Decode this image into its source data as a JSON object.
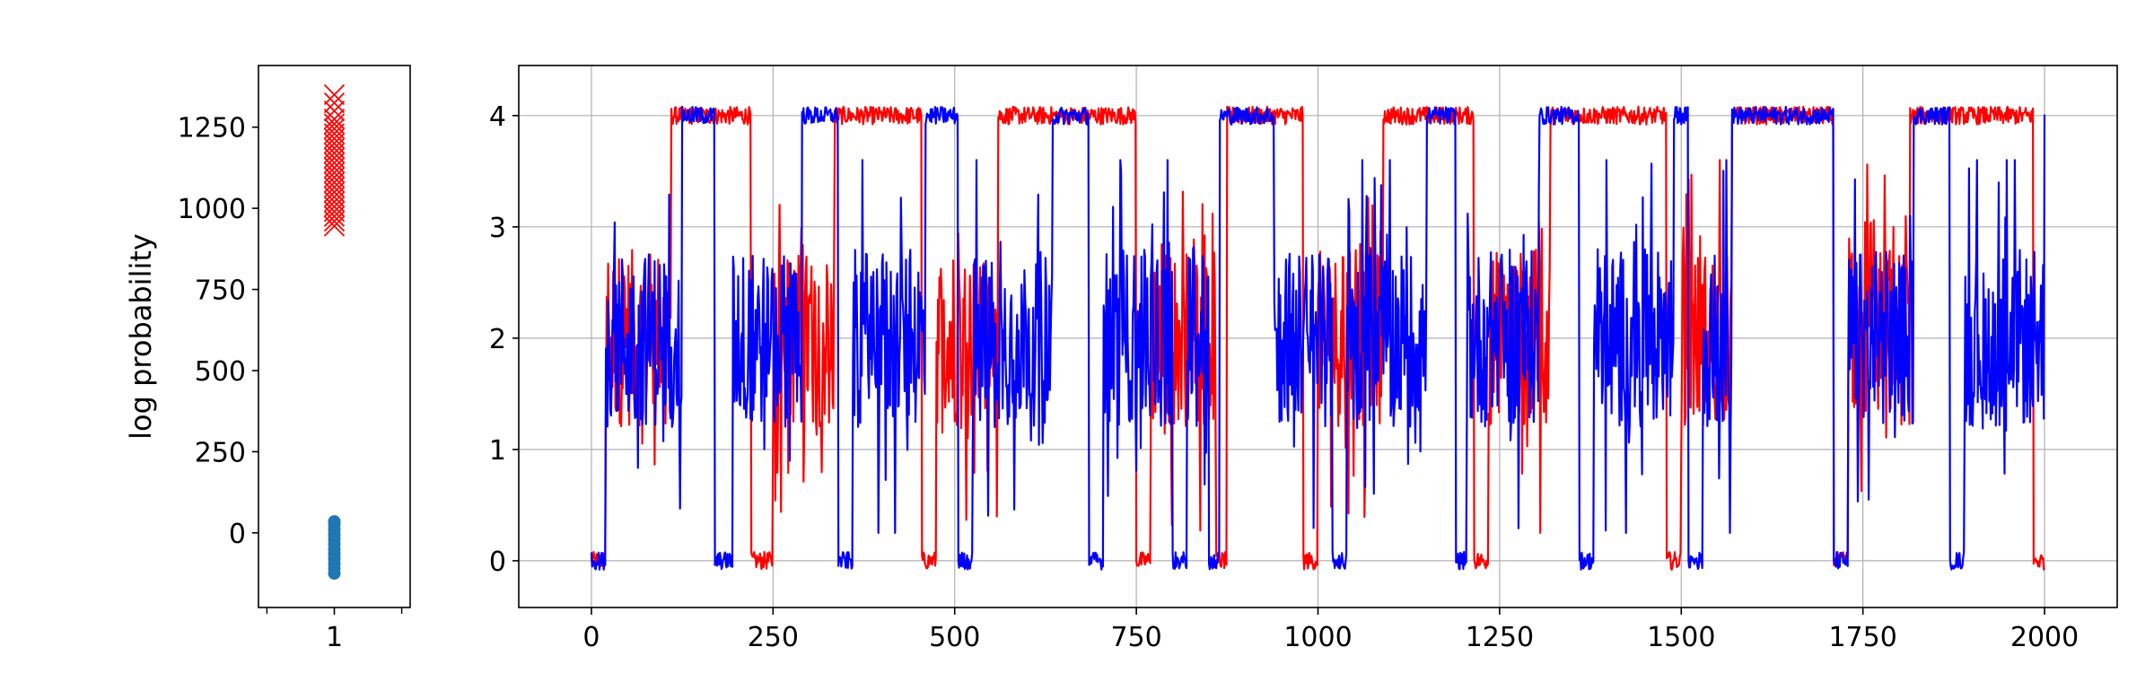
{
  "chart_data": [
    {
      "type": "scatter",
      "ylabel": "log probability",
      "xlim": [
        0.55,
        1.45
      ],
      "ylim": [
        -230,
        1440
      ],
      "x_ticks": [
        "1"
      ],
      "y_ticks": [
        "0",
        "250",
        "500",
        "750",
        "1000",
        "1250"
      ],
      "grid": false,
      "series": [
        {
          "marker": "x",
          "color": "#ff0000",
          "x": 1,
          "y": [
            945,
            960,
            975,
            990,
            1005,
            1020,
            1035,
            1050,
            1065,
            1080,
            1095,
            1110,
            1125,
            1140,
            1155,
            1170,
            1185,
            1200,
            1215,
            1230,
            1245,
            1260,
            1275,
            1300,
            1325,
            1350
          ]
        },
        {
          "marker": "o",
          "color": "#1f77b4",
          "x": 1,
          "y": [
            -125,
            -110,
            -95,
            -80,
            -65,
            -50,
            -35,
            -20,
            -5,
            10,
            25,
            35
          ]
        }
      ]
    },
    {
      "type": "line",
      "xlim": [
        -100,
        2100
      ],
      "ylim": [
        -0.42,
        4.45
      ],
      "x_ticks": [
        "0",
        "250",
        "500",
        "750",
        "1000",
        "1250",
        "1500",
        "1750",
        "2000"
      ],
      "y_ticks": [
        "0",
        "1",
        "2",
        "3",
        "4"
      ],
      "grid": true,
      "series": [
        {
          "color": "#ff0000",
          "segments": [
            [
              0,
              0
            ],
            [
              20,
              2
            ],
            [
              110,
              4
            ],
            [
              220,
              0
            ],
            [
              250,
              2
            ],
            [
              335,
              4
            ],
            [
              455,
              0
            ],
            [
              475,
              2
            ],
            [
              560,
              4
            ],
            [
              750,
              0
            ],
            [
              770,
              2
            ],
            [
              860,
              0
            ],
            [
              875,
              4
            ],
            [
              980,
              0
            ],
            [
              1000,
              2
            ],
            [
              1090,
              4
            ],
            [
              1215,
              0
            ],
            [
              1235,
              2
            ],
            [
              1320,
              4
            ],
            [
              1480,
              0
            ],
            [
              1500,
              2
            ],
            [
              1570,
              4
            ],
            [
              1710,
              0
            ],
            [
              1730,
              2
            ],
            [
              1815,
              4
            ],
            [
              1985,
              0
            ],
            [
              2000,
              0
            ]
          ]
        },
        {
          "color": "#0000ff",
          "segments": [
            [
              0,
              0
            ],
            [
              20,
              2
            ],
            [
              125,
              4
            ],
            [
              170,
              0
            ],
            [
              195,
              2
            ],
            [
              290,
              4
            ],
            [
              340,
              0
            ],
            [
              360,
              2
            ],
            [
              460,
              4
            ],
            [
              505,
              0
            ],
            [
              525,
              2
            ],
            [
              635,
              4
            ],
            [
              685,
              0
            ],
            [
              705,
              2
            ],
            [
              800,
              0
            ],
            [
              820,
              2
            ],
            [
              850,
              0
            ],
            [
              865,
              4
            ],
            [
              940,
              2
            ],
            [
              1020,
              0
            ],
            [
              1040,
              2
            ],
            [
              1150,
              4
            ],
            [
              1190,
              0
            ],
            [
              1205,
              2
            ],
            [
              1305,
              4
            ],
            [
              1360,
              0
            ],
            [
              1380,
              2
            ],
            [
              1490,
              4
            ],
            [
              1510,
              0
            ],
            [
              1530,
              2
            ],
            [
              1570,
              4
            ],
            [
              1710,
              0
            ],
            [
              1730,
              2
            ],
            [
              1820,
              4
            ],
            [
              1870,
              0
            ],
            [
              1890,
              2
            ],
            [
              2000,
              4
            ]
          ]
        }
      ]
    }
  ]
}
